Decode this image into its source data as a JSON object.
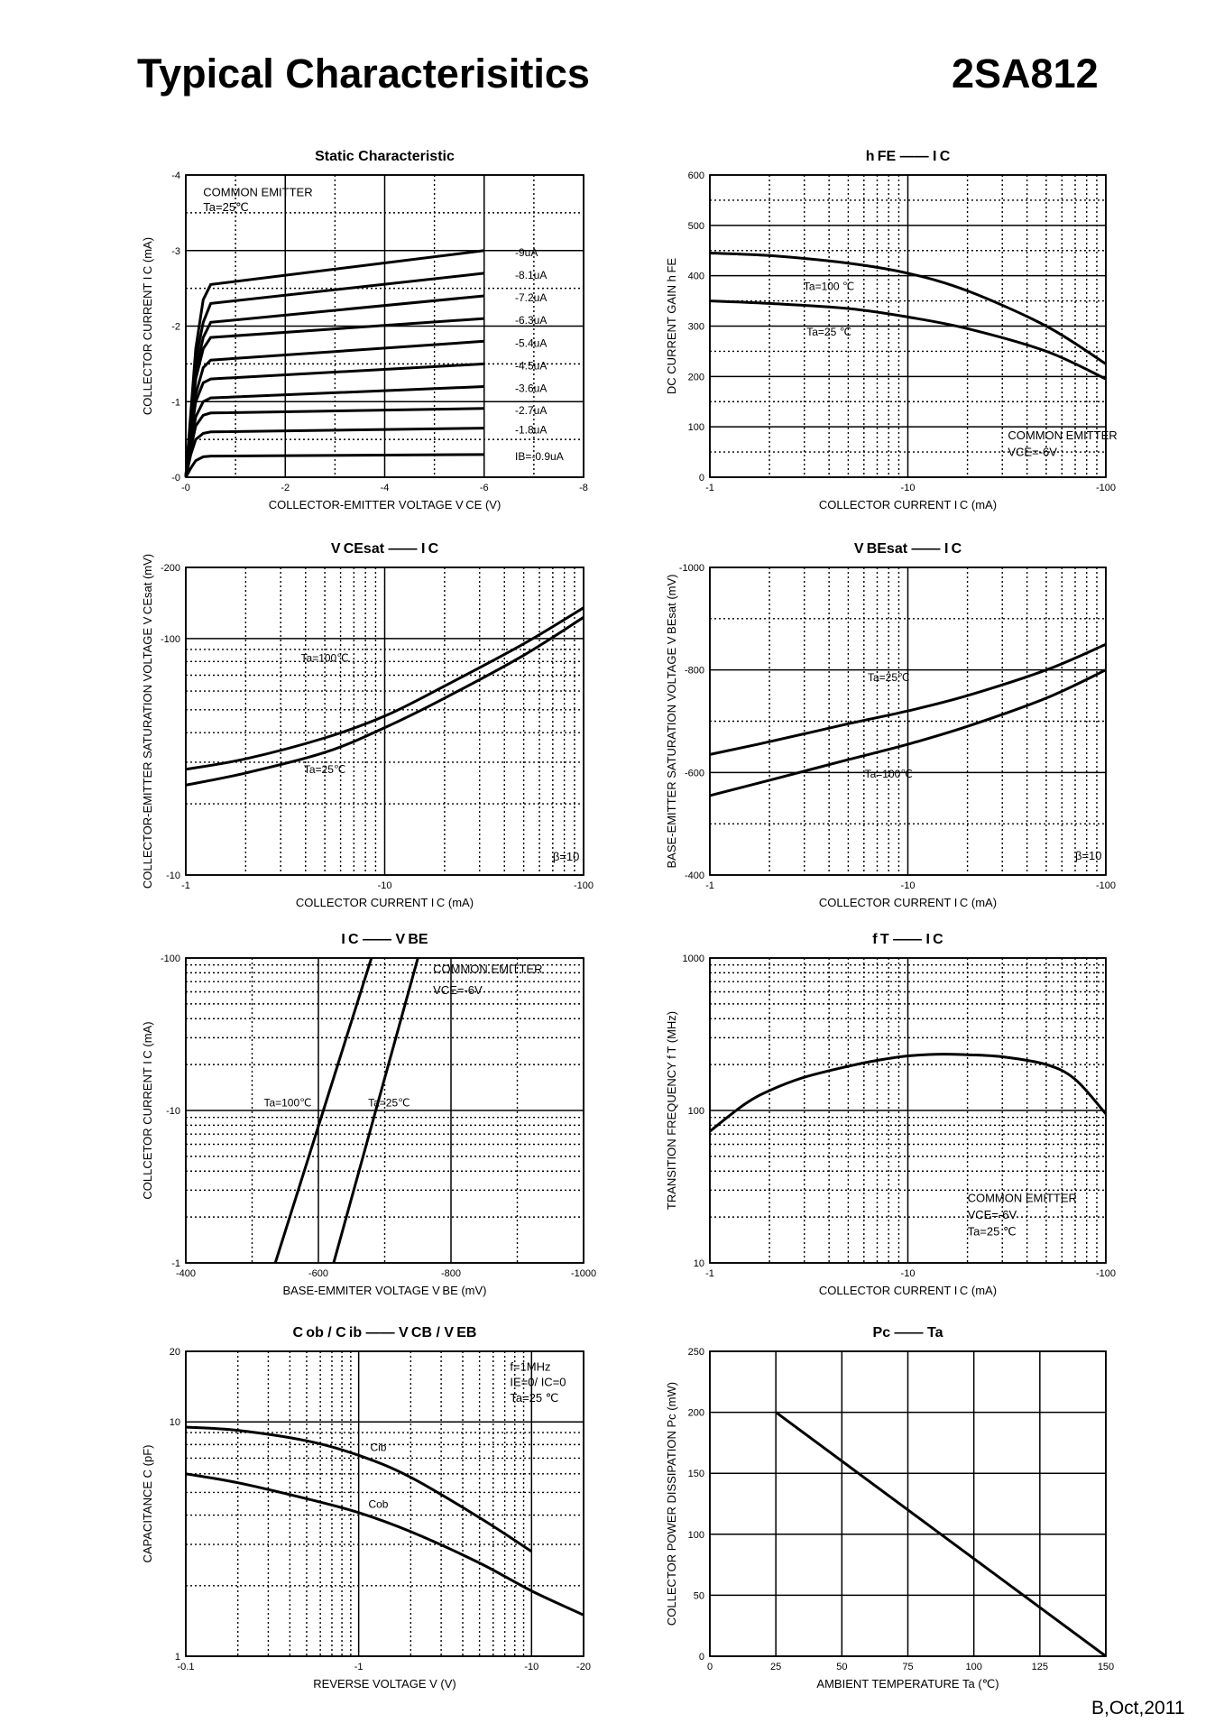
{
  "header": {
    "title": "Typical Characterisitics",
    "part_number": "2SA812"
  },
  "footer": {
    "revision": "B,Oct,2011"
  },
  "chart_data": [
    {
      "id": "static",
      "type": "line",
      "title": "Static Characteristic",
      "xlabel": "COLLECTOR-EMITTER VOLTAGE   V CE   (V)",
      "ylabel": "COLLECTOR CURRENT   I C   (mA)",
      "xscale": "linear",
      "yscale": "linear",
      "xlim": [
        0,
        -8
      ],
      "ylim": [
        0,
        -4
      ],
      "xticks": [
        0,
        -2,
        -4,
        -6,
        -8
      ],
      "xtick_labels": [
        "-0",
        "-2",
        "-4",
        "-6",
        "-8"
      ],
      "yticks": [
        0,
        -1,
        -2,
        -3,
        -4
      ],
      "ytick_labels": [
        "-0",
        "-1",
        "-2",
        "-3",
        "-4"
      ],
      "annotations": [
        {
          "text": "COMMON EMITTER",
          "x": -0.35,
          "y": -3.72
        },
        {
          "text": "Ta=25℃",
          "x": -0.35,
          "y": -3.52
        }
      ],
      "series": [
        {
          "name": "IB=-0.9uA",
          "label": "IB=-0.9uA",
          "x": [
            0,
            -0.1,
            -0.2,
            -0.35,
            -0.5,
            -6
          ],
          "y": [
            0,
            -0.12,
            -0.22,
            -0.27,
            -0.28,
            -0.3
          ]
        },
        {
          "name": "-1.8uA",
          "label": "-1.8uA",
          "x": [
            0,
            -0.1,
            -0.2,
            -0.35,
            -0.5,
            -6
          ],
          "y": [
            0,
            -0.3,
            -0.5,
            -0.58,
            -0.6,
            -0.65
          ]
        },
        {
          "name": "-2.7uA",
          "label": "-2.7uA",
          "x": [
            0,
            -0.1,
            -0.2,
            -0.35,
            -0.5,
            -6
          ],
          "y": [
            0,
            -0.38,
            -0.68,
            -0.82,
            -0.85,
            -0.91
          ]
        },
        {
          "name": "-3.6uA",
          "label": "-3.6uA",
          "x": [
            0,
            -0.1,
            -0.2,
            -0.35,
            -0.5,
            -6
          ],
          "y": [
            0,
            -0.45,
            -0.8,
            -1.0,
            -1.05,
            -1.2
          ]
        },
        {
          "name": "-4.5uA",
          "label": "-4.5uA",
          "x": [
            0,
            -0.1,
            -0.2,
            -0.35,
            -0.5,
            -6
          ],
          "y": [
            0,
            -0.55,
            -1.0,
            -1.25,
            -1.3,
            -1.5
          ]
        },
        {
          "name": "-5.4uA",
          "label": "-5.4uA",
          "x": [
            0,
            -0.1,
            -0.2,
            -0.35,
            -0.5,
            -6
          ],
          "y": [
            0,
            -0.6,
            -1.1,
            -1.45,
            -1.55,
            -1.8
          ]
        },
        {
          "name": "-6.3uA",
          "label": "-6.3uA",
          "x": [
            0,
            -0.1,
            -0.2,
            -0.35,
            -0.5,
            -6
          ],
          "y": [
            0,
            -0.7,
            -1.3,
            -1.7,
            -1.85,
            -2.1
          ]
        },
        {
          "name": "-7.2uA",
          "label": "-7.2uA",
          "x": [
            0,
            -0.1,
            -0.2,
            -0.35,
            -0.5,
            -6
          ],
          "y": [
            0,
            -0.75,
            -1.4,
            -1.85,
            -2.05,
            -2.4
          ]
        },
        {
          "name": "-8.1uA",
          "label": "-8.1uA",
          "x": [
            0,
            -0.1,
            -0.2,
            -0.35,
            -0.5,
            -6
          ],
          "y": [
            0,
            -0.8,
            -1.55,
            -2.05,
            -2.3,
            -2.7
          ]
        },
        {
          "name": "-9uA",
          "label": "-9uA",
          "x": [
            0,
            -0.1,
            -0.2,
            -0.35,
            -0.5,
            -6
          ],
          "y": [
            0,
            -0.85,
            -1.7,
            -2.35,
            -2.55,
            -3.0
          ]
        }
      ]
    },
    {
      "id": "hfe",
      "type": "line",
      "title": "h FE   ——   I C",
      "xlabel": "COLLECTOR CURRENT   I C   (mA)",
      "ylabel": "DC CURRENT GAIN   h FE",
      "xscale": "log",
      "yscale": "linear",
      "xlim": [
        1,
        100
      ],
      "ylim": [
        0,
        600
      ],
      "xticks": [
        1,
        10,
        100
      ],
      "xtick_labels": [
        "-1",
        "-10",
        "-100"
      ],
      "yticks": [
        0,
        100,
        200,
        300,
        400,
        500,
        600
      ],
      "ytick_labels": [
        "0",
        "100",
        "200",
        "300",
        "400",
        "500",
        "600"
      ],
      "annotations": [
        {
          "text": "COMMON EMITTER",
          "x": 32,
          "y": 75
        },
        {
          "text": "VCE=-6V",
          "x": 32,
          "y": 42
        }
      ],
      "series": [
        {
          "name": "Ta=100℃",
          "label": "Ta=100 ℃",
          "x": [
            1,
            2,
            5,
            10,
            20,
            50,
            100
          ],
          "y": [
            445,
            440,
            425,
            405,
            370,
            300,
            225
          ]
        },
        {
          "name": "Ta=25℃",
          "label": "Ta=25 ℃",
          "x": [
            1,
            2,
            5,
            10,
            20,
            50,
            100
          ],
          "y": [
            350,
            345,
            335,
            318,
            295,
            250,
            195
          ]
        }
      ]
    },
    {
      "id": "vcesat",
      "type": "line",
      "title": "V CEsat   ——   I C",
      "xlabel": "COLLECTOR CURRENT   I C   (mA)",
      "ylabel": "COLLECTOR-EMITTER SATURATION VOLTAGE   V CEsat   (mV)",
      "xscale": "log",
      "yscale": "log",
      "xlim": [
        1,
        100
      ],
      "ylim": [
        10,
        200
      ],
      "xticks": [
        1,
        10,
        100
      ],
      "xtick_labels": [
        "-1",
        "-10",
        "-100"
      ],
      "yticks": [
        10,
        100,
        200
      ],
      "ytick_labels": [
        "-10",
        "-100",
        "-200"
      ],
      "annotations": [
        {
          "text": "β=10",
          "x": 70,
          "y": 11.5
        }
      ],
      "series": [
        {
          "name": "Ta=100℃",
          "label": "Ta=100℃",
          "x": [
            1,
            2,
            5,
            10,
            20,
            50,
            100
          ],
          "y": [
            28,
            31,
            38,
            47,
            63,
            95,
            135
          ]
        },
        {
          "name": "Ta=25℃",
          "label": "Ta=25℃",
          "x": [
            1,
            2,
            5,
            10,
            20,
            50,
            100
          ],
          "y": [
            24,
            27,
            33,
            42,
            56,
            85,
            123
          ]
        }
      ]
    },
    {
      "id": "vbesat",
      "type": "line",
      "title": "V BEsat   ——   I C",
      "xlabel": "COLLECTOR CURRENT   I C   (mA)",
      "ylabel": "BASE-EMITTER SATURATION VOLTAGE   V BEsat   (mV)",
      "xscale": "log",
      "yscale": "linear",
      "xlim": [
        1,
        100
      ],
      "ylim": [
        -400,
        -1000
      ],
      "xticks": [
        1,
        10,
        100
      ],
      "xtick_labels": [
        "-1",
        "-10",
        "-100"
      ],
      "yticks": [
        -400,
        -600,
        -800,
        -1000
      ],
      "ytick_labels": [
        "-400",
        "-600",
        "-800",
        "-1000"
      ],
      "annotations": [
        {
          "text": "β=10",
          "x": 70,
          "y": -430
        }
      ],
      "series": [
        {
          "name": "Ta=25℃",
          "label": "Ta=25℃",
          "x": [
            1,
            2,
            5,
            10,
            20,
            50,
            100
          ],
          "y": [
            -635,
            -660,
            -695,
            -720,
            -750,
            -800,
            -850
          ]
        },
        {
          "name": "Ta=100℃",
          "label": "Ta=100℃",
          "x": [
            1,
            2,
            5,
            10,
            20,
            50,
            100
          ],
          "y": [
            -555,
            -585,
            -625,
            -655,
            -690,
            -745,
            -800
          ]
        }
      ]
    },
    {
      "id": "ic_vbe",
      "type": "line",
      "title": "I C   ——   V BE",
      "xlabel": "BASE-EMMITER VOLTAGE   V BE   (mV)",
      "ylabel": "COLLCETOR CURRENT   I C   (mA)",
      "xscale": "linear",
      "yscale": "log",
      "xlim": [
        -400,
        -1000
      ],
      "ylim": [
        1,
        100
      ],
      "xticks": [
        -400,
        -600,
        -800,
        -1000
      ],
      "xtick_labels": [
        "-400",
        "-600",
        "-800",
        "-1000"
      ],
      "yticks": [
        1,
        10,
        100
      ],
      "ytick_labels": [
        "-1",
        "-10",
        "-100"
      ],
      "annotations": [
        {
          "text": "COMMON EMITTER",
          "x": -773,
          "y": 80
        },
        {
          "text": "VCE=-6V",
          "x": -773,
          "y": 58
        }
      ],
      "series": [
        {
          "name": "Ta=100℃",
          "label": "Ta=100℃",
          "x": [
            -535,
            -680
          ],
          "y": [
            1,
            100
          ]
        },
        {
          "name": "Ta=25℃",
          "label": "Ta=25℃",
          "x": [
            -623,
            -750
          ],
          "y": [
            1,
            100
          ]
        }
      ]
    },
    {
      "id": "ft",
      "type": "line",
      "title": "f T   ——   I C",
      "xlabel": "COLLECTOR CURRENT   I C   (mA)",
      "ylabel": "TRANSITION FREQUENCY   f T   (MHz)",
      "xscale": "log",
      "yscale": "log",
      "xlim": [
        1,
        100
      ],
      "ylim": [
        10,
        1000
      ],
      "xticks": [
        1,
        10,
        100
      ],
      "xtick_labels": [
        "-1",
        "-10",
        "-100"
      ],
      "yticks": [
        10,
        100,
        1000
      ],
      "ytick_labels": [
        "10",
        "100",
        "1000"
      ],
      "annotations": [
        {
          "text": "COMMON EMITTER",
          "x": 20,
          "y": 25
        },
        {
          "text": "VCE=-6V",
          "x": 20,
          "y": 19.5
        },
        {
          "text": "Ta=25 ℃",
          "x": 20,
          "y": 15.2
        }
      ],
      "series": [
        {
          "name": "fT",
          "label": "",
          "x": [
            1,
            1.5,
            2,
            3,
            5,
            7,
            10,
            15,
            20,
            30,
            50,
            70,
            100
          ],
          "y": [
            73,
            110,
            135,
            165,
            195,
            213,
            228,
            234,
            232,
            225,
            200,
            160,
            95
          ]
        }
      ]
    },
    {
      "id": "cap",
      "type": "line",
      "title": "C ob / C ib   ——   V CB / V EB",
      "xlabel": "REVERSE VOLTAGE   V   (V)",
      "ylabel": "CAPACITANCE   C   (pF)",
      "xscale": "log",
      "yscale": "log",
      "xlim": [
        0.1,
        20
      ],
      "ylim": [
        1,
        20
      ],
      "xticks": [
        0.1,
        1,
        10,
        20
      ],
      "xtick_labels": [
        "-0.1",
        "-1",
        "-10",
        "-20"
      ],
      "yticks": [
        1,
        10,
        20
      ],
      "ytick_labels": [
        "1",
        "10",
        "20"
      ],
      "annotations": [
        {
          "text": "f=1MHz",
          "x": 7.5,
          "y": 16.5
        },
        {
          "text": "IE=0/ IC=0",
          "x": 7.5,
          "y": 14.2
        },
        {
          "text": "Ta=25 ℃",
          "x": 7.5,
          "y": 12.2
        }
      ],
      "series": [
        {
          "name": "Cib",
          "label": "Cib",
          "x": [
            0.1,
            0.2,
            0.5,
            1,
            2,
            5,
            10
          ],
          "y": [
            9.5,
            9.2,
            8.3,
            7.2,
            5.8,
            3.9,
            2.8
          ]
        },
        {
          "name": "Cob",
          "label": "Cob",
          "x": [
            0.1,
            0.2,
            0.5,
            1,
            2,
            5,
            10,
            20
          ],
          "y": [
            6.0,
            5.5,
            4.7,
            4.1,
            3.4,
            2.5,
            1.9,
            1.5
          ]
        }
      ]
    },
    {
      "id": "pc",
      "type": "line",
      "title": "Pc   ——   Ta",
      "xlabel": "AMBIENT TEMPERATURE   Ta   (℃)",
      "ylabel": "COLLECTOR POWER DISSIPATION   Pc   (mW)",
      "xscale": "linear",
      "yscale": "linear",
      "xlim": [
        0,
        150
      ],
      "ylim": [
        0,
        250
      ],
      "xticks": [
        0,
        25,
        50,
        75,
        100,
        125,
        150
      ],
      "xtick_labels": [
        "0",
        "25",
        "50",
        "75",
        "100",
        "125",
        "150"
      ],
      "yticks": [
        0,
        50,
        100,
        150,
        200,
        250
      ],
      "ytick_labels": [
        "0",
        "50",
        "100",
        "150",
        "200",
        "250"
      ],
      "annotations": [],
      "series": [
        {
          "name": "Pc",
          "label": "",
          "x": [
            25,
            150
          ],
          "y": [
            200,
            0
          ]
        }
      ]
    }
  ]
}
